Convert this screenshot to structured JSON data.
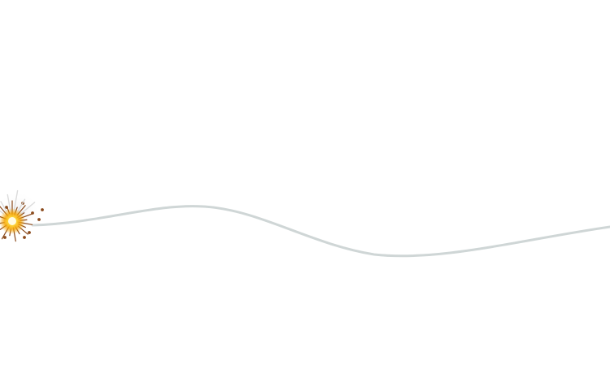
{
  "scene": {
    "background_color": "#ffffff",
    "fuse_color": "#cfd6d6",
    "spark_core_color": "#fff3a0",
    "spark_glow_color": "#f5a300",
    "spark_debris_color": "#8a4a1c",
    "spark_smoke_color": "#e3e3e3"
  }
}
